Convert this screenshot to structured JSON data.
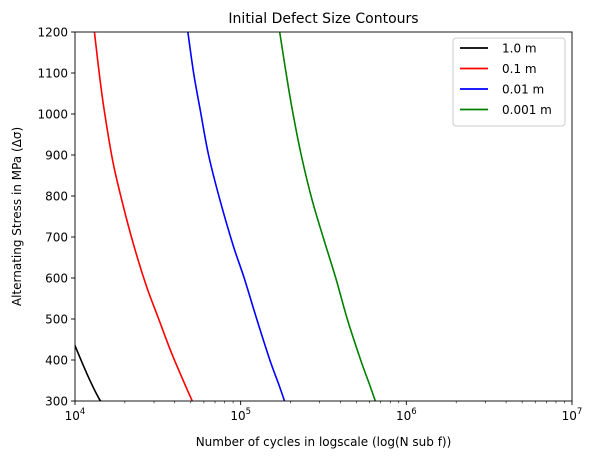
{
  "chart_data": {
    "type": "line",
    "title": "Initial Defect Size Contours",
    "xlabel": "Number of cycles in logscale (log(N sub f))",
    "ylabel": "Alternating Stress in MPa (Δσ)",
    "x_scale": "log",
    "xlim": [
      10000,
      10000000
    ],
    "ylim": [
      300,
      1200
    ],
    "x_ticks": [
      {
        "value": 10000,
        "base": "10",
        "exp": "4"
      },
      {
        "value": 100000,
        "base": "10",
        "exp": "5"
      },
      {
        "value": 1000000,
        "base": "10",
        "exp": "6"
      },
      {
        "value": 10000000,
        "base": "10",
        "exp": "7"
      }
    ],
    "y_ticks": [
      300,
      400,
      500,
      600,
      700,
      800,
      900,
      1000,
      1100,
      1200
    ],
    "grid": false,
    "legend_position": "top-right",
    "series": [
      {
        "name": "1.0 m",
        "color": "#000000",
        "points": [
          [
            9600,
            450
          ],
          [
            10000,
            435
          ],
          [
            11000,
            395
          ],
          [
            12000,
            360
          ],
          [
            13000,
            330
          ],
          [
            14000,
            305
          ],
          [
            14300,
            300
          ]
        ]
      },
      {
        "name": "0.1 m",
        "color": "#ff0000",
        "points": [
          [
            13100,
            1200
          ],
          [
            14000,
            1100
          ],
          [
            15000,
            1010
          ],
          [
            17000,
            880
          ],
          [
            20000,
            760
          ],
          [
            23000,
            670
          ],
          [
            27000,
            580
          ],
          [
            32000,
            500
          ],
          [
            38000,
            420
          ],
          [
            45000,
            350
          ],
          [
            51000,
            300
          ]
        ]
      },
      {
        "name": "0.01 m",
        "color": "#0000ff",
        "points": [
          [
            48000,
            1200
          ],
          [
            52000,
            1100
          ],
          [
            57000,
            1010
          ],
          [
            64000,
            900
          ],
          [
            75000,
            790
          ],
          [
            90000,
            680
          ],
          [
            105000,
            600
          ],
          [
            125000,
            500
          ],
          [
            150000,
            400
          ],
          [
            170000,
            340
          ],
          [
            184000,
            300
          ]
        ]
      },
      {
        "name": "0.001 m",
        "color": "#008000",
        "points": [
          [
            172000,
            1200
          ],
          [
            188000,
            1100
          ],
          [
            205000,
            1010
          ],
          [
            232000,
            900
          ],
          [
            270000,
            790
          ],
          [
            320000,
            690
          ],
          [
            375000,
            600
          ],
          [
            440000,
            500
          ],
          [
            530000,
            400
          ],
          [
            600000,
            340
          ],
          [
            650000,
            300
          ]
        ]
      }
    ]
  }
}
